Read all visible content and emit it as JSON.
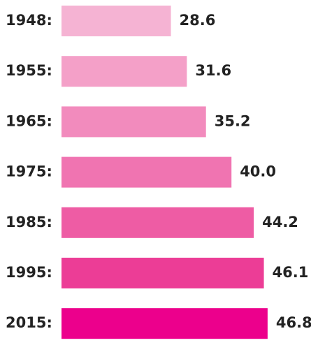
{
  "chart_data": {
    "type": "bar",
    "orientation": "horizontal",
    "categories": [
      "1948:",
      "1955:",
      "1965:",
      "1975:",
      "1985:",
      "1995:",
      "2015:"
    ],
    "values": [
      28.6,
      31.6,
      35.2,
      40.0,
      44.2,
      46.1,
      46.8
    ],
    "value_labels": [
      "28.6",
      "31.6",
      "35.2",
      "40.0",
      "44.2",
      "46.1",
      "46.8"
    ],
    "colors": [
      "#f5b3d3",
      "#f4a0c8",
      "#f28bbd",
      "#f074b1",
      "#ee5ca4",
      "#ec3d96",
      "#ec008c"
    ],
    "xlim": [
      8,
      48
    ]
  }
}
